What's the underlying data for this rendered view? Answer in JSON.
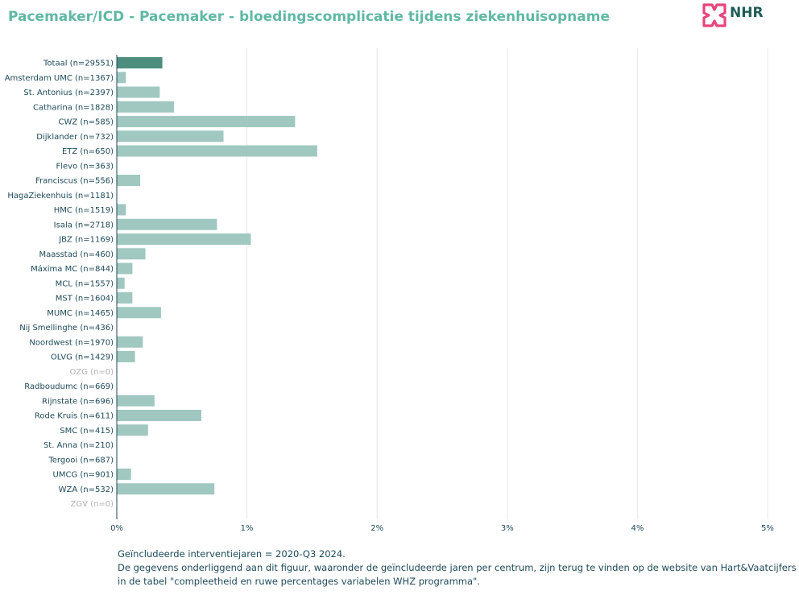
{
  "header": {
    "title": "Pacemaker/ICD - Pacemaker - bloedingscomplicatie tijdens ziekenhuisopname",
    "logo_text": "NHR"
  },
  "colors": {
    "title": "#5fb8a4",
    "total_bar": "#4d8d7e",
    "bar": "#a0c8c0",
    "axis": "#1e4a5a",
    "grid": "#e8e8e8",
    "muted_label": "#b0b0b0",
    "logo_pink": "#e8457a",
    "logo_dark": "#1e5c57"
  },
  "chart_data": {
    "type": "bar",
    "orientation": "horizontal",
    "xlim": [
      0,
      5
    ],
    "x_unit": "%",
    "grid": true,
    "xticks": [
      "0%",
      "1%",
      "2%",
      "3%",
      "4%",
      "5%"
    ],
    "categories": [
      "Totaal (n=29551)",
      "Amsterdam UMC (n=1367)",
      "St. Antonius (n=2397)",
      "Catharina (n=1828)",
      "CWZ (n=585)",
      "Dijklander (n=732)",
      "ETZ (n=650)",
      "Flevo (n=363)",
      "Franciscus (n=556)",
      "HagaZiekenhuis (n=1181)",
      "HMC (n=1519)",
      "Isala (n=2718)",
      "JBZ (n=1169)",
      "Maasstad (n=460)",
      "Máxima MC (n=844)",
      "MCL (n=1557)",
      "MST (n=1604)",
      "MUMC (n=1465)",
      "Nij Smellinghe (n=436)",
      "Noordwest (n=1970)",
      "OLVG (n=1429)",
      "OZG (n=0)",
      "Radboudumc (n=669)",
      "Rijnstate (n=696)",
      "Rode Kruis (n=611)",
      "SMC (n=415)",
      "St. Anna (n=210)",
      "Tergooi (n=687)",
      "UMCG (n=901)",
      "WZA (n=532)",
      "ZGV (n=0)"
    ],
    "values": [
      0.35,
      0.07,
      0.33,
      0.44,
      1.37,
      0.82,
      1.54,
      0,
      0.18,
      0,
      0.07,
      0.77,
      1.03,
      0.22,
      0.12,
      0.06,
      0.12,
      0.34,
      0,
      0.2,
      0.14,
      0,
      0,
      0.29,
      0.65,
      0.24,
      0,
      0,
      0.11,
      0.75,
      0
    ],
    "highlight_index": 0,
    "muted_categories": [
      "OZG (n=0)",
      "ZGV (n=0)"
    ]
  },
  "footnote": {
    "line1": "Geïncludeerde interventiejaren = 2020-Q3 2024.",
    "line2": "De gegevens onderliggend aan dit figuur, waaronder de geïncludeerde jaren per centrum, zijn terug te vinden op de website van Hart&Vaatcijfers",
    "line3": "in de tabel \"compleetheid en ruwe percentages variabelen WHZ programma\"."
  }
}
